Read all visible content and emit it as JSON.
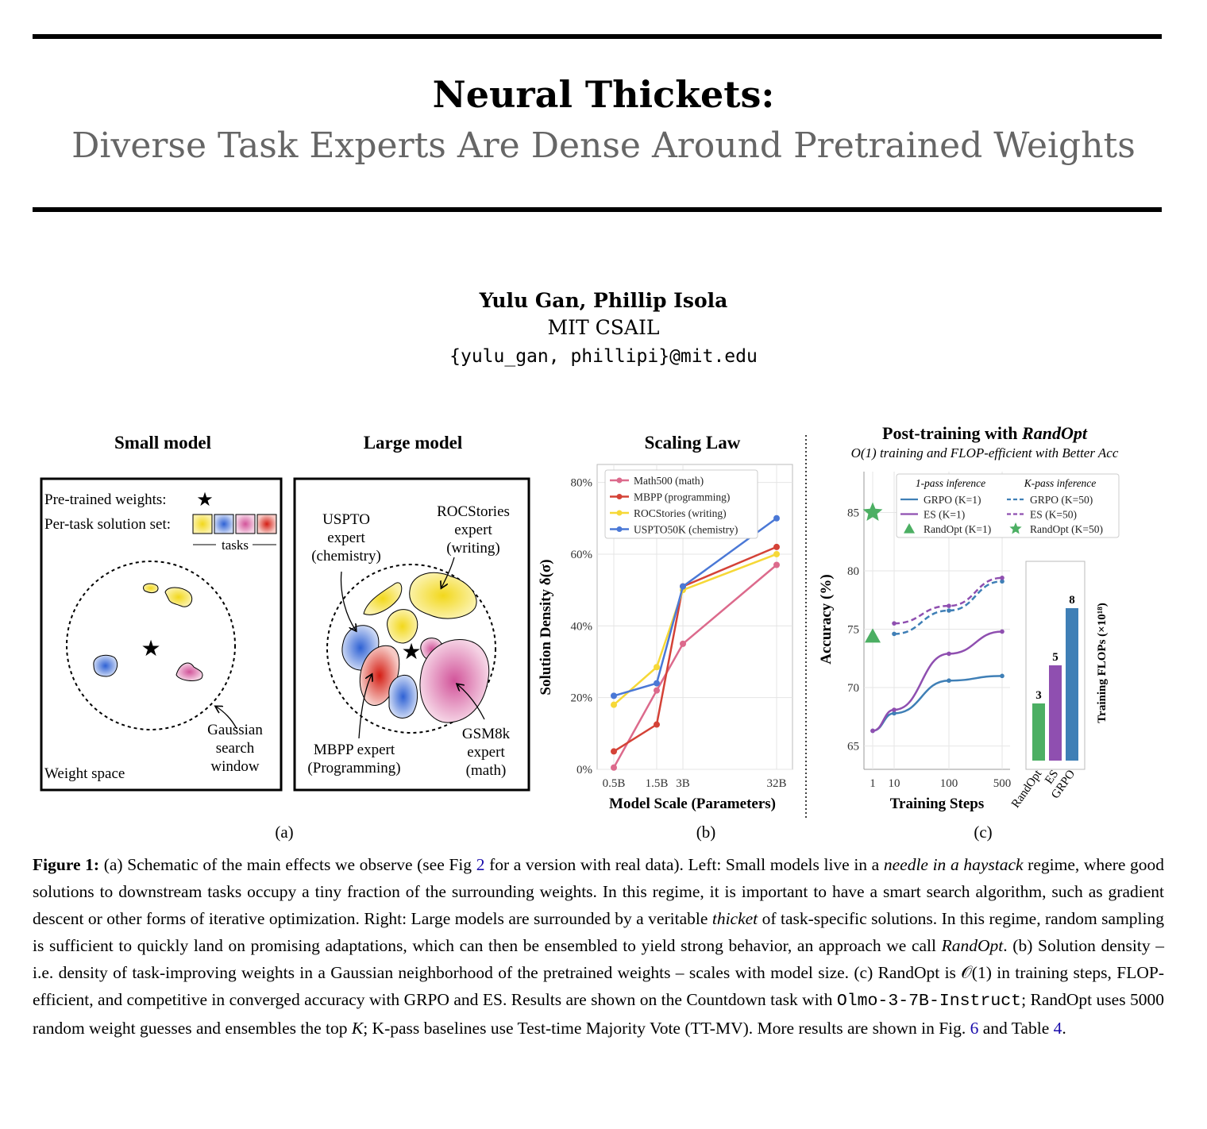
{
  "paper": {
    "title": "Neural Thickets:",
    "subtitle": "Diverse Task Experts Are Dense Around Pretrained Weights",
    "authors": "Yulu Gan, Phillip Isola",
    "affiliation": "MIT CSAIL",
    "email": "{yulu_gan, phillipi}@mit.edu"
  },
  "panel_a": {
    "label": "(a)",
    "small": {
      "title": "Small model",
      "pretrained_label": "Pre-trained weights:",
      "solution_label": "Per-task solution set:",
      "tasks_label": "tasks",
      "gaussian_label": [
        "Gaussian",
        "search",
        "window"
      ],
      "weight_space_label": "Weight space"
    },
    "large": {
      "title": "Large model",
      "uspto_label": [
        "USPTO",
        "expert",
        "(chemistry)"
      ],
      "rocstories_label": [
        "ROCStories",
        "expert",
        "(writing)"
      ],
      "mbpp_label": [
        "MBPP expert",
        "(Programming)"
      ],
      "gsm8k_label": [
        "GSM8k",
        "expert",
        "(math)"
      ]
    },
    "colors": {
      "yellow": "#f5e46a",
      "blue": "#4a78d6",
      "pink": "#d674a8",
      "red": "#d93a2c"
    }
  },
  "chart_data": [
    {
      "type": "line",
      "panel": "(b)",
      "title": "Scaling Law",
      "xlabel": "Model Scale (Parameters)",
      "ylabel": "Solution Density δ(σ)",
      "categories": [
        "0.5B",
        "1.5B",
        "3B",
        "32B"
      ],
      "yticks": [
        "0%",
        "20%",
        "40%",
        "60%",
        "80%"
      ],
      "ylim": [
        0,
        85
      ],
      "series": [
        {
          "name": "Math500 (math)",
          "color": "#dc6a8c",
          "values": [
            0.5,
            22,
            35,
            57
          ]
        },
        {
          "name": "MBPP (programming)",
          "color": "#d44237",
          "values": [
            5,
            12.5,
            51,
            62
          ]
        },
        {
          "name": "ROCStories (writing)",
          "color": "#f6d837",
          "values": [
            18,
            28.5,
            50,
            60
          ]
        },
        {
          "name": "USPTO50K (chemistry)",
          "color": "#4a78d6",
          "values": [
            20.5,
            24,
            51,
            70
          ]
        }
      ]
    },
    {
      "type": "line",
      "panel": "(c)",
      "title": "Post-training with ",
      "title_emph": "RandOpt",
      "subtitle": "O(1) training and FLOP-efficient with Better Acc",
      "xlabel": "Training Steps",
      "ylabel": "Accuracy (%)",
      "x": [
        1,
        10,
        100,
        500
      ],
      "yticks": [
        "65",
        "70",
        "75",
        "80",
        "85"
      ],
      "ylim": [
        63,
        88.5
      ],
      "legend_headers": [
        "1-pass inference",
        "K-pass inference"
      ],
      "series": [
        {
          "name": "GRPO (K=1)",
          "color": "#3f7fb6",
          "style": "solid",
          "x": [
            1,
            10,
            100,
            500
          ],
          "values": [
            66.3,
            67.8,
            70.6,
            71.0
          ]
        },
        {
          "name": "ES (K=1)",
          "color": "#8f4fb0",
          "style": "solid",
          "x": [
            1,
            10,
            100,
            500
          ],
          "values": [
            66.3,
            68.1,
            72.9,
            74.8
          ]
        },
        {
          "name": "RandOpt (K=1)",
          "color": "#4caf63",
          "style": "triangle",
          "x": [
            1
          ],
          "values": [
            74.4
          ]
        },
        {
          "name": "GRPO (K=50)",
          "color": "#3f7fb6",
          "style": "dashed",
          "x": [
            10,
            100,
            500
          ],
          "values": [
            74.6,
            76.6,
            79.1
          ]
        },
        {
          "name": "ES (K=50)",
          "color": "#8f4fb0",
          "style": "dashed",
          "x": [
            10,
            100,
            500
          ],
          "values": [
            75.5,
            77.0,
            79.4
          ]
        },
        {
          "name": "RandOpt (K=50)",
          "color": "#4caf63",
          "style": "star",
          "x": [
            1
          ],
          "values": [
            85.0
          ]
        }
      ]
    },
    {
      "type": "bar",
      "panel": "(c) inset",
      "ylabel": "Training FLOPs (×10¹⁸)",
      "categories": [
        "RandOpt",
        "ES",
        "GRPO"
      ],
      "values": [
        3,
        5,
        8
      ],
      "colors": [
        "#4caf63",
        "#8f4fb0",
        "#3f7fb6"
      ]
    }
  ],
  "caption": {
    "label": "Figure 1:",
    "parts": [
      "(a) Schematic of the main effects we observe (see Fig ",
      "2",
      " for a version with real data). Left: Small models live in a ",
      "needle in a haystack",
      " regime, where good solutions to downstream tasks occupy a tiny fraction of the surrounding weights. In this regime, it is important to have a smart search algorithm, such as gradient descent or other forms of iterative optimization. Right: Large models are surrounded by a veritable ",
      "thicket",
      " of task-specific solutions. In this regime, random sampling is sufficient to quickly land on promising adaptations, which can then be ensembled to yield strong behavior, an approach we call ",
      "RandOpt",
      ". (b) Solution density – i.e. density of task-improving weights in a Gaussian neighborhood of the pretrained weights – scales with model size. (c) RandOpt is ",
      "𝒪(1)",
      " in training steps, FLOP-efficient, and competitive in converged accuracy with GRPO and ES. Results are shown on the Countdown task with ",
      "Olmo-3-7B-Instruct",
      "; RandOpt uses 5000 random weight guesses and ensembles the top ",
      "K",
      "; K-pass baselines use Test-time Majority Vote (TT-MV). More results are shown in Fig. ",
      "6",
      " and Table ",
      "4",
      "."
    ]
  }
}
